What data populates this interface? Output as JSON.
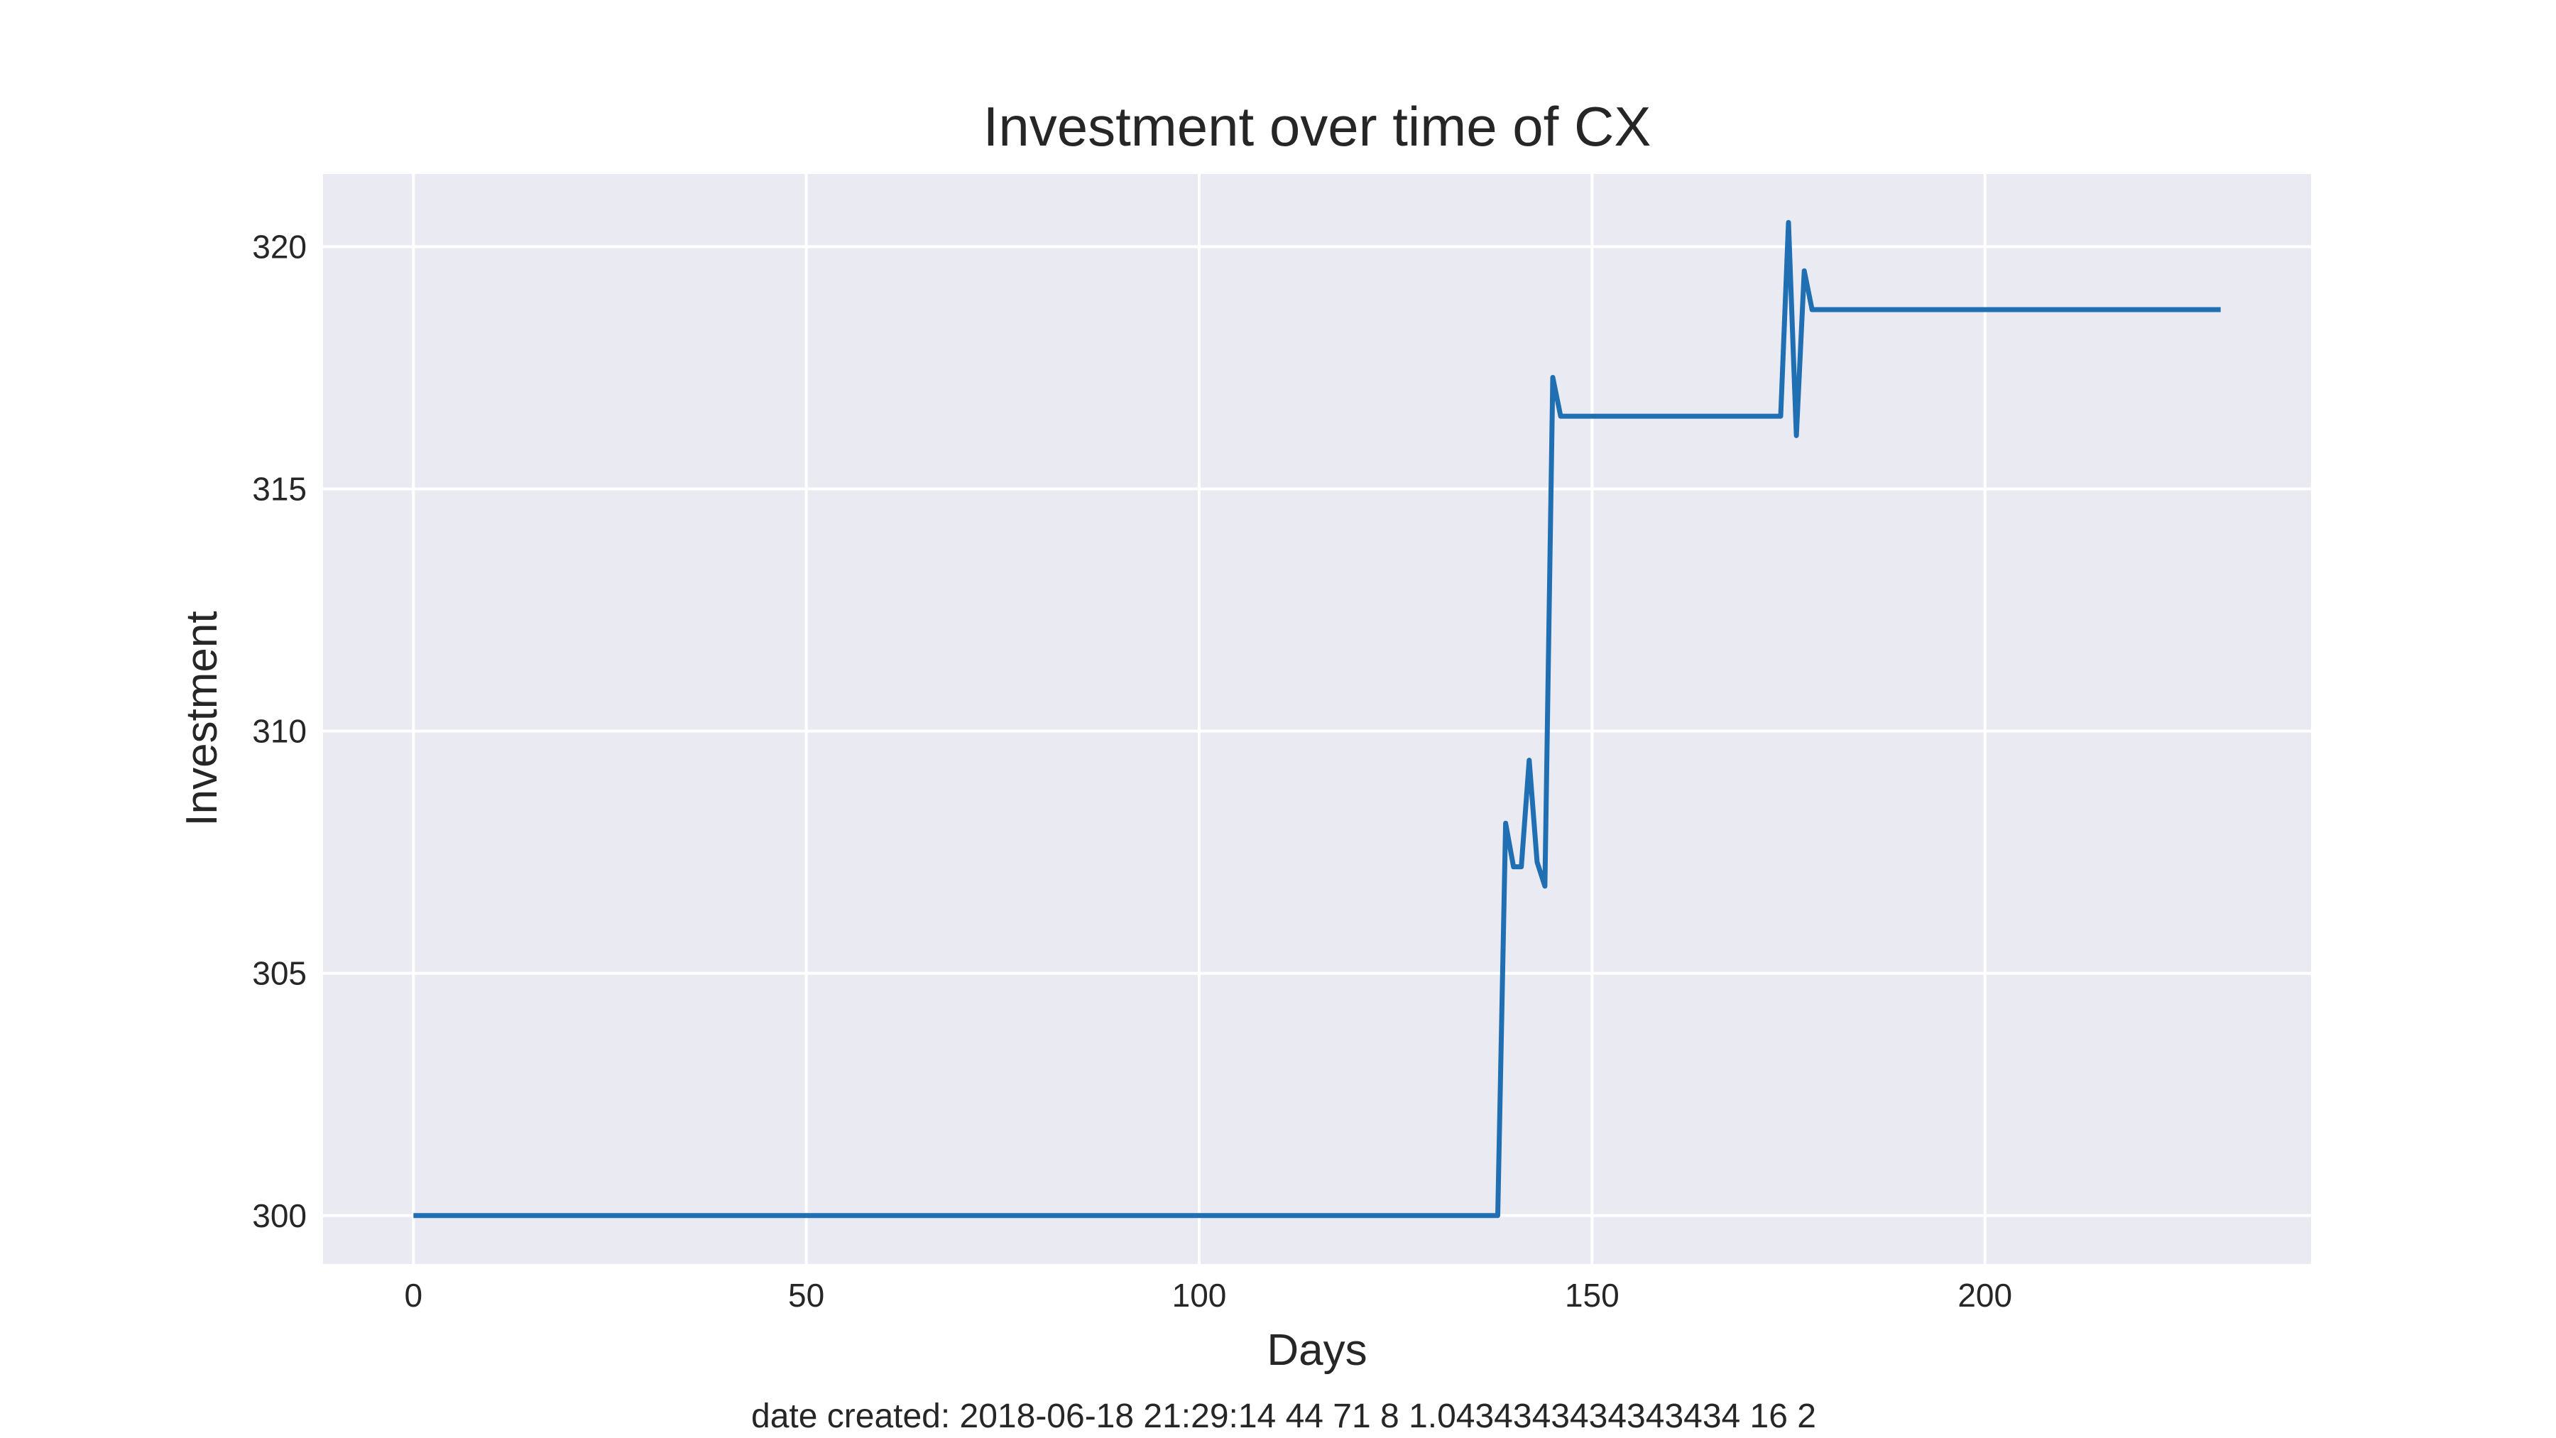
{
  "chart_data": {
    "type": "line",
    "title": "Investment over time of CX",
    "xlabel": "Days",
    "ylabel": "Investment",
    "xlim": [
      -11.5,
      241.5
    ],
    "ylim": [
      299.0,
      321.5
    ],
    "xticks": [
      0,
      50,
      100,
      150,
      200
    ],
    "yticks": [
      300,
      305,
      310,
      315,
      320
    ],
    "grid": true,
    "colors": {
      "background": "#eaeaf2",
      "grid": "#ffffff",
      "line": "#1f6fb2"
    },
    "series": [
      {
        "x": [
          0,
          138,
          139,
          140,
          141,
          142,
          143,
          144,
          145,
          146,
          174,
          175,
          176,
          177,
          178,
          230
        ],
        "values": [
          300,
          300,
          308.1,
          307.2,
          307.2,
          309.4,
          307.3,
          306.8,
          317.3,
          316.5,
          316.5,
          320.5,
          316.1,
          319.5,
          318.7,
          318.7
        ]
      }
    ]
  },
  "caption": "date created: 2018-06-18 21:29:14 44 71 8 1.0434343434343434 16 2"
}
